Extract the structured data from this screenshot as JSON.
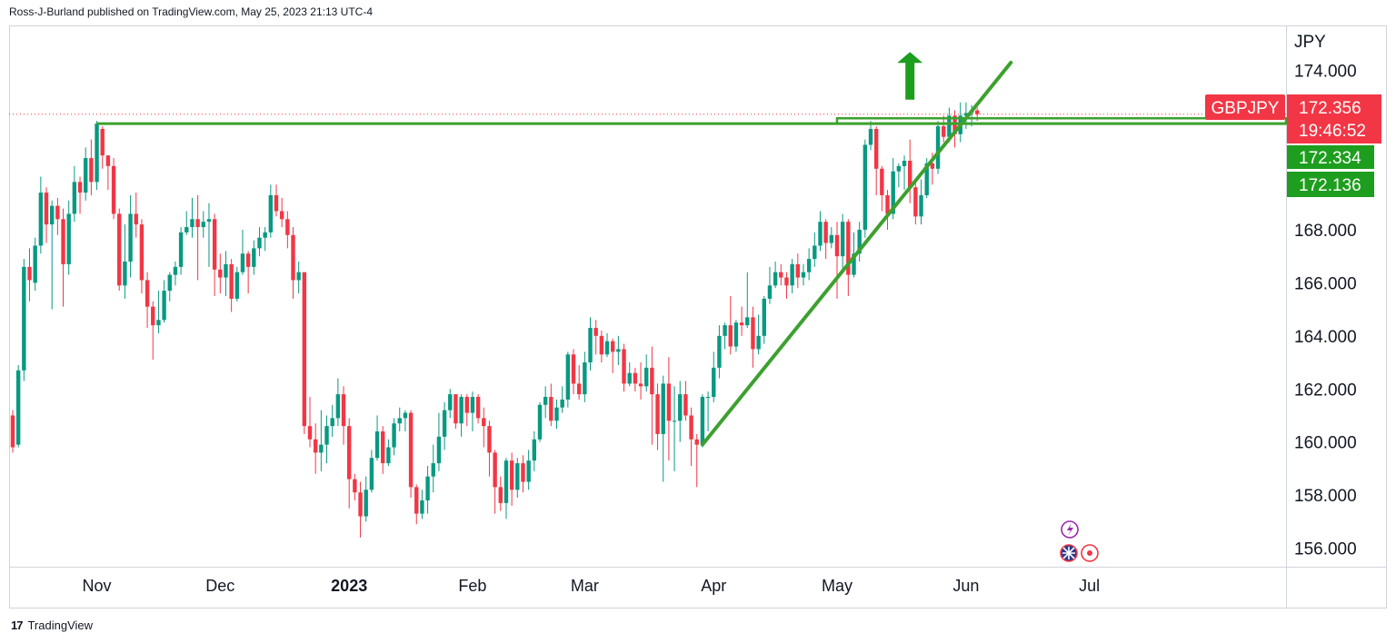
{
  "header": {
    "text": "Ross-J-Burland published on TradingView.com, May 25, 2023 21:13 UTC-4"
  },
  "footer": {
    "logo": "17",
    "brand": "TradingView"
  },
  "chart_data": {
    "type": "candlestick",
    "title": "",
    "symbol": "GBPJPY",
    "currency": "JPY",
    "ylim": [
      155.3,
      175.7
    ],
    "y_ticks": [
      "174.000",
      "168.000",
      "166.000",
      "164.000",
      "162.000",
      "160.000",
      "158.000",
      "156.000"
    ],
    "months": [
      "Nov",
      "Dec",
      "2023",
      "Feb",
      "Mar",
      "Apr",
      "May",
      "Jun",
      "Jul"
    ],
    "month_index": [
      15,
      37,
      60,
      82,
      102,
      125,
      147,
      170,
      192
    ],
    "last_price": "172.356",
    "countdown": "19:46:52",
    "bid": "172.334",
    "ask": "172.136",
    "colors": {
      "up": "#089981",
      "down": "#f23645",
      "trend": "#3da02f",
      "tag_red": "#f23645",
      "tag_green": "#1e9e1e"
    },
    "resistance_level": 172.0,
    "resistance_band": [
      172.0,
      172.2
    ],
    "support_trendline": {
      "from": [
        123,
        159.9
      ],
      "to": [
        178,
        174.3
      ]
    },
    "candles": [
      [
        161,
        159.8,
        159.6,
        161.2
      ],
      [
        159.9,
        162.7,
        159.8,
        162.9
      ],
      [
        162.7,
        166.6,
        162.3,
        166.9
      ],
      [
        166.6,
        166.1,
        165.3,
        167.3
      ],
      [
        166,
        167.4,
        165.7,
        167.7
      ],
      [
        167.4,
        169.4,
        167.1,
        170
      ],
      [
        169.4,
        168.2,
        167.5,
        169.6
      ],
      [
        168.2,
        168.9,
        165,
        169.1
      ],
      [
        168.9,
        168.4,
        167.8,
        169.2
      ],
      [
        168.4,
        166.7,
        165.1,
        168.8
      ],
      [
        166.7,
        168.6,
        166.3,
        169.1
      ],
      [
        168.6,
        169.8,
        168.3,
        170.4
      ],
      [
        169.8,
        169.4,
        168.6,
        170
      ],
      [
        169.4,
        170.7,
        169.1,
        171.1
      ],
      [
        170.7,
        169.8,
        169.3,
        171.4
      ],
      [
        169.8,
        172,
        169.5,
        172.1
      ],
      [
        171.8,
        170.8,
        170.3,
        171.9
      ],
      [
        170.8,
        170.4,
        169.5,
        170.8
      ],
      [
        170.4,
        168.6,
        168.4,
        170.7
      ],
      [
        168.6,
        165.9,
        165.7,
        168.8
      ],
      [
        165.9,
        166.8,
        165.4,
        168.2
      ],
      [
        166.8,
        168.6,
        166.2,
        169.3
      ],
      [
        168.6,
        168.2,
        167.7,
        169.4
      ],
      [
        168.2,
        166.1,
        165.6,
        168.4
      ],
      [
        166.1,
        165.1,
        164.3,
        166.4
      ],
      [
        165.1,
        164.4,
        163.1,
        165.3
      ],
      [
        164.4,
        164.6,
        164.1,
        165.7
      ],
      [
        164.6,
        165.7,
        164.5,
        166.1
      ],
      [
        165.7,
        166.3,
        165.3,
        166.4
      ],
      [
        166.3,
        166.6,
        165.9,
        166.8
      ],
      [
        166.6,
        167.9,
        166.3,
        168.1
      ],
      [
        167.9,
        168.1,
        167.8,
        168.7
      ],
      [
        168.1,
        168.4,
        167.7,
        169.2
      ],
      [
        168.4,
        168.1,
        166.1,
        169.3
      ],
      [
        168.1,
        168.3,
        167.7,
        168.7
      ],
      [
        168.3,
        168.4,
        166.6,
        169
      ],
      [
        168.4,
        166.5,
        165.5,
        168.6
      ],
      [
        166.5,
        166.2,
        165.6,
        167.1
      ],
      [
        166.2,
        166.7,
        165.5,
        167.2
      ],
      [
        166.7,
        165.4,
        164.9,
        166.9
      ],
      [
        165.4,
        166.4,
        165.3,
        166.6
      ],
      [
        166.4,
        167.1,
        166.3,
        168
      ],
      [
        167.1,
        166.6,
        165.6,
        167.2
      ],
      [
        166.6,
        167.3,
        166.3,
        167.6
      ],
      [
        167.3,
        167.7,
        167,
        168.1
      ],
      [
        167.7,
        167.9,
        167.2,
        168.1
      ],
      [
        167.9,
        169.3,
        167.7,
        169.7
      ],
      [
        169.3,
        168.7,
        168.5,
        169.7
      ],
      [
        168.7,
        168.4,
        168.1,
        169.2
      ],
      [
        168.4,
        167.8,
        167.3,
        168.7
      ],
      [
        167.8,
        166.1,
        165.4,
        168.1
      ],
      [
        166.1,
        166.4,
        165.6,
        166.8
      ],
      [
        166.4,
        160.6,
        160.3,
        166.4
      ],
      [
        160.6,
        160.1,
        159.8,
        161.7
      ],
      [
        160.1,
        159.6,
        158.8,
        160.7
      ],
      [
        159.6,
        159.9,
        158.9,
        161.2
      ],
      [
        159.9,
        160.6,
        159.2,
        161
      ],
      [
        160.6,
        160.9,
        160.2,
        161.4
      ],
      [
        160.9,
        161.8,
        160.6,
        162.4
      ],
      [
        161.8,
        160.6,
        159.9,
        162.1
      ],
      [
        160.6,
        158.6,
        157.5,
        160.9
      ],
      [
        158.6,
        158.1,
        157.8,
        158.8
      ],
      [
        158.1,
        157.2,
        156.4,
        158.5
      ],
      [
        157.2,
        158.2,
        157,
        158.7
      ],
      [
        158.2,
        159.4,
        158.1,
        159.7
      ],
      [
        159.4,
        160.4,
        159.3,
        161
      ],
      [
        160.4,
        159.2,
        158.8,
        160.6
      ],
      [
        159.2,
        159.8,
        159.1,
        160.1
      ],
      [
        159.8,
        160.7,
        159.5,
        160.9
      ],
      [
        160.7,
        160.9,
        160.4,
        161.3
      ],
      [
        160.9,
        161.1,
        160.4,
        161.2
      ],
      [
        161.1,
        158.3,
        157.9,
        161.2
      ],
      [
        158.3,
        157.3,
        156.9,
        158.4
      ],
      [
        157.3,
        157.8,
        157.1,
        158.2
      ],
      [
        157.8,
        158.7,
        157.3,
        159.1
      ],
      [
        158.7,
        159.2,
        158.1,
        159.9
      ],
      [
        159.2,
        160.2,
        158.9,
        161.1
      ],
      [
        160.2,
        161.2,
        159.7,
        161.5
      ],
      [
        161.2,
        161.8,
        160.9,
        162
      ],
      [
        161.8,
        160.7,
        160.5,
        161.8
      ],
      [
        160.7,
        161.7,
        160.2,
        161.8
      ],
      [
        161.7,
        161.1,
        160.6,
        161.8
      ],
      [
        161.1,
        161.7,
        160.4,
        161.9
      ],
      [
        161.7,
        160.9,
        160.7,
        161.8
      ],
      [
        160.9,
        160.6,
        159.8,
        161.3
      ],
      [
        160.6,
        159.6,
        158.7,
        160.8
      ],
      [
        159.6,
        158.3,
        157.3,
        159.7
      ],
      [
        158.3,
        157.7,
        157.4,
        158.7
      ],
      [
        157.7,
        159.3,
        157.1,
        159.4
      ],
      [
        159.3,
        158.2,
        157.6,
        159.6
      ],
      [
        158.2,
        159.2,
        157.9,
        159.4
      ],
      [
        159.2,
        158.5,
        158.1,
        159.5
      ],
      [
        158.5,
        159.3,
        158.2,
        159.7
      ],
      [
        159.3,
        160.1,
        158.9,
        160.4
      ],
      [
        160.1,
        161.4,
        160,
        161.5
      ],
      [
        161.4,
        161.7,
        160.9,
        162.1
      ],
      [
        161.7,
        160.8,
        160.6,
        162.2
      ],
      [
        160.8,
        161.3,
        160.5,
        161.6
      ],
      [
        161.3,
        161.6,
        161.1,
        162.1
      ],
      [
        161.6,
        163.3,
        161.3,
        163.4
      ],
      [
        163.3,
        162.2,
        161.8,
        163.5
      ],
      [
        162.2,
        161.8,
        161.6,
        162.9
      ],
      [
        161.8,
        163,
        161.5,
        163.4
      ],
      [
        163,
        164.3,
        162.7,
        164.7
      ],
      [
        164.3,
        164,
        163.3,
        164.6
      ],
      [
        164,
        163.3,
        163,
        164.2
      ],
      [
        163.3,
        163.8,
        163.2,
        164.1
      ],
      [
        163.8,
        163.4,
        162.6,
        163.9
      ],
      [
        163.4,
        163.5,
        162.9,
        164
      ],
      [
        163.5,
        162.2,
        161.9,
        163.7
      ],
      [
        162.2,
        162.6,
        162.1,
        163
      ],
      [
        162.6,
        162.2,
        161.9,
        162.8
      ],
      [
        162.2,
        162.1,
        161.6,
        163
      ],
      [
        162.1,
        162.8,
        161.9,
        163.3
      ],
      [
        162.8,
        161.8,
        159.9,
        163.6
      ],
      [
        161.8,
        160.3,
        159.7,
        162.2
      ],
      [
        160.3,
        162.2,
        158.5,
        162.5
      ],
      [
        162.2,
        160.8,
        159.3,
        163.2
      ],
      [
        160.8,
        160.8,
        158.9,
        162.1
      ],
      [
        160.8,
        161.8,
        160,
        162.3
      ],
      [
        161.8,
        161,
        160.8,
        162.3
      ],
      [
        161,
        160.1,
        159.1,
        161.3
      ],
      [
        160.1,
        159.9,
        158.3,
        160.3
      ],
      [
        159.9,
        161.7,
        159.8,
        161.8
      ],
      [
        161.7,
        161.7,
        160.4,
        161.9
      ],
      [
        161.7,
        162.8,
        161.5,
        163.4
      ],
      [
        162.8,
        164,
        162.4,
        164.4
      ],
      [
        164,
        164.4,
        163.5,
        164.5
      ],
      [
        164.4,
        163.6,
        163.3,
        165.5
      ],
      [
        163.6,
        164.5,
        163.4,
        164.6
      ],
      [
        164.5,
        164.4,
        164,
        165.1
      ],
      [
        164.4,
        164.7,
        164.3,
        166.4
      ],
      [
        164.7,
        163.5,
        162.8,
        165.1
      ],
      [
        163.5,
        164,
        163.3,
        164.8
      ],
      [
        164,
        165.4,
        163.7,
        165.5
      ],
      [
        165.4,
        165.9,
        165.2,
        166.6
      ],
      [
        165.9,
        166.4,
        165.8,
        166.8
      ],
      [
        166.4,
        166.2,
        165.9,
        166.7
      ],
      [
        166.2,
        165.9,
        165.4,
        166.4
      ],
      [
        165.9,
        166.7,
        165.6,
        166.9
      ],
      [
        166.7,
        166.2,
        165.8,
        167.1
      ],
      [
        166.2,
        166.4,
        165.9,
        166.7
      ],
      [
        166.4,
        166.9,
        166.1,
        167.3
      ],
      [
        166.9,
        167.4,
        166.6,
        167.9
      ],
      [
        167.4,
        168.3,
        167.2,
        168.7
      ],
      [
        168.3,
        167.5,
        166.9,
        168.4
      ],
      [
        167.5,
        167.8,
        167.3,
        168.1
      ],
      [
        167.8,
        167,
        165.4,
        168.3
      ],
      [
        167,
        168.3,
        166.4,
        168.6
      ],
      [
        168.3,
        166.3,
        165.5,
        168.4
      ],
      [
        166.3,
        167.1,
        166.2,
        167.9
      ],
      [
        167.1,
        168,
        166.8,
        168.3
      ],
      [
        168,
        171.2,
        167.7,
        171.4
      ],
      [
        171.2,
        171.8,
        171,
        172.1
      ],
      [
        171.8,
        170.3,
        169.3,
        171.9
      ],
      [
        170.3,
        169.3,
        168.7,
        170.4
      ],
      [
        169.3,
        168.6,
        168,
        169.5
      ],
      [
        168.6,
        170.2,
        168.4,
        170.7
      ],
      [
        170.2,
        170.4,
        169.6,
        170.5
      ],
      [
        170.4,
        170.6,
        169.5,
        170.8
      ],
      [
        170.6,
        169.6,
        169,
        171.4
      ],
      [
        169.6,
        168.5,
        168.2,
        169.8
      ],
      [
        168.5,
        169.3,
        168.2,
        169.9
      ],
      [
        169.3,
        170.5,
        169.2,
        170.7
      ],
      [
        170.5,
        170.3,
        169.7,
        170.9
      ],
      [
        170.3,
        171.9,
        170.1,
        172.1
      ],
      [
        171.9,
        171.5,
        171.3,
        172.3
      ],
      [
        171.5,
        172.3,
        171.3,
        172.6
      ],
      [
        172.3,
        171.6,
        171.1,
        172.5
      ],
      [
        171.6,
        172.3,
        171.3,
        172.8
      ],
      [
        172.3,
        172.4,
        171.8,
        172.8
      ],
      [
        172.4,
        172.5,
        171.9,
        172.7
      ],
      [
        172.5,
        172.356,
        172.1,
        172.6
      ]
    ]
  }
}
